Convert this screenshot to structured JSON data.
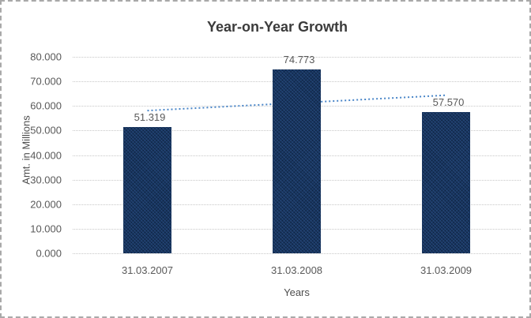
{
  "frame": {
    "background": "#ffffff",
    "border_color": "#a9a9a9",
    "border_style": "dashed"
  },
  "chart_data": {
    "type": "bar",
    "title": "Year-on-Year Growth",
    "xlabel": "Years",
    "ylabel": "Amt. in Millions",
    "categories": [
      "31.03.2007",
      "31.03.2008",
      "31.03.2009"
    ],
    "values": [
      51.319,
      74.773,
      57.57
    ],
    "value_labels": [
      "51.319",
      "74.773",
      "57.570"
    ],
    "y_ticks": [
      "0.000",
      "10.000",
      "20.000",
      "30.000",
      "40.000",
      "50.000",
      "60.000",
      "70.000",
      "80.000"
    ],
    "ylim": [
      0,
      80
    ],
    "y_tick_step": 10,
    "grid": true,
    "legend": "none",
    "trendline": "linear-dotted",
    "colors": {
      "bar": "#17355E",
      "trendline": "#4a86c8",
      "gridline": "#c8c8c8",
      "tick_label": "#595959",
      "axis_title": "#4d4d4d",
      "title": "#3b3b3b"
    }
  }
}
